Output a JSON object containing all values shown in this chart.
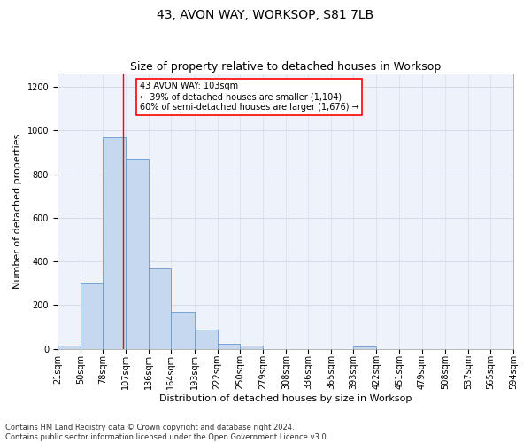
{
  "title": "43, AVON WAY, WORKSOP, S81 7LB",
  "subtitle": "Size of property relative to detached houses in Worksop",
  "xlabel": "Distribution of detached houses by size in Worksop",
  "ylabel": "Number of detached properties",
  "property_size": 103,
  "bin_edges": [
    21,
    50,
    78,
    107,
    136,
    164,
    193,
    222,
    250,
    279,
    308,
    336,
    365,
    393,
    422,
    451,
    479,
    508,
    537,
    565,
    594
  ],
  "bin_labels": [
    "21sqm",
    "50sqm",
    "78sqm",
    "107sqm",
    "136sqm",
    "164sqm",
    "193sqm",
    "222sqm",
    "250sqm",
    "279sqm",
    "308sqm",
    "336sqm",
    "365sqm",
    "393sqm",
    "422sqm",
    "451sqm",
    "479sqm",
    "508sqm",
    "537sqm",
    "565sqm",
    "594sqm"
  ],
  "counts": [
    13,
    305,
    970,
    868,
    370,
    170,
    88,
    25,
    15,
    0,
    0,
    0,
    0,
    12,
    0,
    0,
    0,
    0,
    0,
    0
  ],
  "bar_color": "#c5d8f0",
  "bar_edge_color": "#6699cc",
  "vline_color": "red",
  "vline_x": 103,
  "annotation_line1": "43 AVON WAY: 103sqm",
  "annotation_line2": "← 39% of detached houses are smaller (1,104)",
  "annotation_line3": "60% of semi-detached houses are larger (1,676) →",
  "annotation_box_color": "white",
  "annotation_box_edge": "red",
  "ylim": [
    0,
    1260
  ],
  "yticks": [
    0,
    200,
    400,
    600,
    800,
    1000,
    1200
  ],
  "grid_color": "#d0d8e8",
  "bg_color": "#eef2fa",
  "footnote_line1": "Contains HM Land Registry data © Crown copyright and database right 2024.",
  "footnote_line2": "Contains public sector information licensed under the Open Government Licence v3.0.",
  "title_fontsize": 10,
  "subtitle_fontsize": 9,
  "xlabel_fontsize": 8,
  "ylabel_fontsize": 8,
  "tick_fontsize": 7,
  "annotation_fontsize": 7,
  "footnote_fontsize": 6
}
